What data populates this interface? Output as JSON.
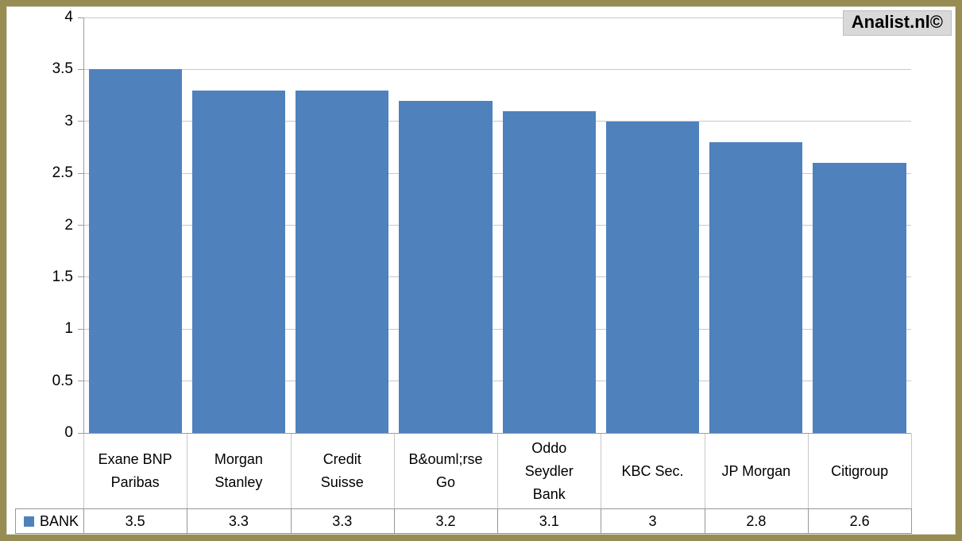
{
  "branding": {
    "label": "Analist.nl©"
  },
  "chart_data": {
    "type": "bar",
    "title": "",
    "series_name": "BANK",
    "categories": [
      "Exane BNP Paribas",
      "Morgan Stanley",
      "Credit Suisse",
      "B&ouml;rse Go",
      "Oddo Seydler Bank",
      "KBC Sec.",
      "JP Morgan",
      "Citigroup"
    ],
    "categories_display": [
      "Exane BNP\nParibas",
      "Morgan\nStanley",
      "Credit\nSuisse",
      "B&ouml;rse\nGo",
      "Oddo\nSeydler\nBank",
      "KBC Sec.",
      "JP Morgan",
      "Citigroup"
    ],
    "values": [
      3.5,
      3.3,
      3.3,
      3.2,
      3.1,
      3,
      2.8,
      2.6
    ],
    "yticks": [
      0,
      0.5,
      1,
      1.5,
      2,
      2.5,
      3,
      3.5,
      4
    ],
    "ylim": [
      0,
      4
    ],
    "grid": true,
    "legend_position": "bottom-table",
    "colors": {
      "bar": "#4F81BD",
      "frame_border": "#968C54",
      "gridline": "#C8C8C8",
      "axis": "#9C9C9C",
      "table_border": "#969696",
      "brand_bg": "#D9D9D9"
    }
  }
}
